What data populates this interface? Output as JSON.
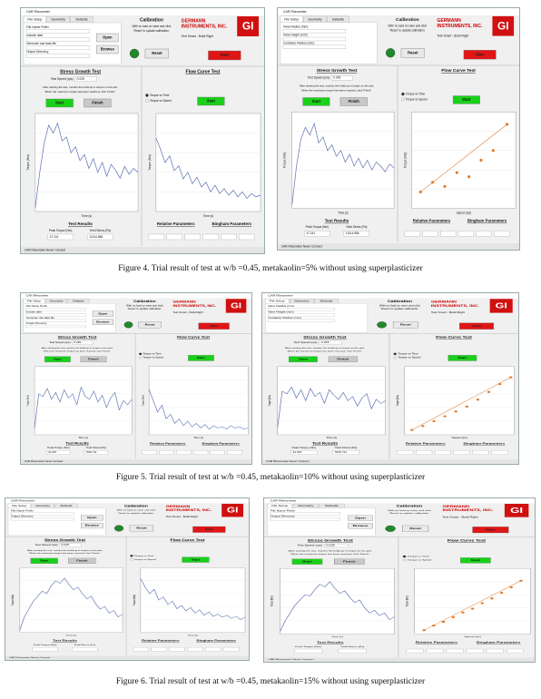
{
  "app": {
    "window_title": "CAR Rheometer",
    "tabs": [
      "File Setup",
      "Geometry",
      "Defaults"
    ],
    "calibration": "Calibration",
    "calibration_note": [
      "With no load on vane and click",
      "'Reset' to update calibration."
    ],
    "reset": "Reset",
    "brand": [
      "GERMANN",
      "INSTRUMENTS, INC."
    ],
    "tagline": "Test Smart - Build Right",
    "logo": "GI",
    "start": "Start",
    "finish": "Finish",
    "stress_title": "Stress Growth Test",
    "test_speed_label": "Test Speed (rps)",
    "test_speed": "0.025",
    "instructions": [
      "After starting the test, monitor the build-up in torque on the plot.",
      "When the maximum torque has been reached, click 'Finish'."
    ],
    "flow_title": "Flow Curve Test",
    "flow_options": [
      "Torque vs Time",
      "Torque vs Speed"
    ],
    "results_title": "Test Results",
    "results_labels": [
      "Peak Torque (Nm)",
      "Yield Stress (Pa)"
    ],
    "relative": "Relative Parameters",
    "bingham": "Bingham Parameters",
    "status": "CAR Rheometer Never Connect",
    "torque_axis": "Torque (Nm)",
    "time_axis": "Time (s)",
    "speed_axis": "Speed (rps)"
  },
  "figures": [
    {
      "caption": "Figure 4. Trial result of test at w/b =0.45, metakaolin=5% without using superplasticizer",
      "panels": [
        {
          "setup_fields": [
            "File Name Prefix",
            "Include date",
            "Generate raw data file",
            "Output Directory"
          ],
          "setup_buttons": [
            "Open",
            "Browse"
          ],
          "stress": {
            "ylim": [
              0,
              50
            ],
            "values": [
              2,
              20,
              35,
              44,
              40,
              45,
              36,
              38,
              30,
              33,
              26,
              29,
              22,
              27,
              20,
              25,
              18,
              24,
              21,
              17,
              23,
              19,
              22,
              20
            ]
          },
          "flow": {
            "ylim": [
              0,
              60
            ],
            "values": [
              45,
              38,
              30,
              34,
              25,
              28,
              20,
              24,
              17,
              21,
              15,
              18,
              12,
              16,
              11,
              14,
              10,
              13,
              9,
              12,
              8,
              11,
              9,
              10
            ]
          },
          "results_values": [
            "47.241",
            "11014.886"
          ]
        },
        {
          "setup_fields": [
            "Vane Radius (mm)",
            "Vane Height (mm)",
            "Container Radius (mm)"
          ],
          "stress": {
            "ylim": [
              0,
              50
            ],
            "values": [
              2,
              22,
              36,
              42,
              38,
              44,
              34,
              37,
              30,
              33,
              27,
              30,
              24,
              28,
              22,
              26,
              21,
              25,
              20,
              24,
              22,
              19,
              23,
              21
            ]
          },
          "flow": {
            "xlim": [
              0,
              0.6
            ],
            "ylim": [
              0,
              7
            ],
            "x": [
              0.05,
              0.12,
              0.19,
              0.26,
              0.33,
              0.4,
              0.47,
              0.55
            ],
            "values": [
              1.2,
              1.9,
              1.6,
              2.6,
              2.3,
              3.5,
              4.2,
              6.1
            ]
          },
          "results_values": [
            "47.241",
            "11014.886"
          ]
        }
      ]
    },
    {
      "caption": "Figure 5. Trial result of test at w/b =0.45, metakaolin=10% without using superplasticizer",
      "panels": [
        {
          "setup_fields": [
            "File Name Prefix",
            "Include date",
            "Generate raw data file",
            "Output Directory"
          ],
          "setup_buttons": [
            "Open",
            "Browse"
          ],
          "stress": {
            "ylim": [
              0,
              50
            ],
            "values": [
              5,
              30,
              28,
              34,
              26,
              31,
              24,
              33,
              27,
              30,
              22,
              35,
              28,
              26,
              32,
              24,
              29,
              20,
              27,
              31,
              18,
              25,
              22,
              26
            ]
          },
          "flow": {
            "ylim": [
              0,
              60
            ],
            "values": [
              40,
              30,
              20,
              26,
              14,
              18,
              10,
              14,
              8,
              12,
              7,
              10,
              6,
              9,
              5,
              8,
              6,
              7,
              5,
              8,
              6,
              7,
              5,
              6
            ]
          },
          "results_values": [
            "31.997",
            "7830.711"
          ]
        },
        {
          "setup_fields": [
            "Vane Radius (mm)",
            "Vane Height (mm)",
            "Container Radius (mm)"
          ],
          "stress": {
            "ylim": [
              0,
              50
            ],
            "values": [
              5,
              32,
              30,
              35,
              27,
              33,
              25,
              34,
              28,
              31,
              23,
              33,
              29,
              26,
              31,
              25,
              28,
              21,
              27,
              30,
              19,
              26,
              23,
              25
            ]
          },
          "flow": {
            "xlim": [
              0,
              0.6
            ],
            "ylim": [
              0,
              7
            ],
            "x": [
              0.04,
              0.1,
              0.16,
              0.22,
              0.28,
              0.34,
              0.4,
              0.46,
              0.52,
              0.58
            ],
            "values": [
              0.5,
              0.9,
              1.4,
              1.9,
              2.4,
              2.9,
              3.6,
              4.4,
              5.2,
              5.9
            ]
          },
          "results_values": [
            "31.997",
            "7830.711"
          ]
        }
      ]
    },
    {
      "caption": "Figure 6. Trial result of test at w/b =0.45, metakaolin=15% without using superplasticizer",
      "panels": [
        {
          "setup_fields": [
            "File Name Prefix",
            "Output Directory"
          ],
          "setup_buttons": [
            "Open",
            "Browse"
          ],
          "stress": {
            "ylim": [
              0,
              50
            ],
            "values": [
              2,
              12,
              18,
              24,
              28,
              32,
              30,
              36,
              40,
              38,
              42,
              37,
              33,
              35,
              30,
              26,
              28,
              22,
              18,
              20,
              15,
              17,
              12,
              14
            ]
          },
          "flow": {
            "ylim": [
              0,
              60
            ],
            "values": [
              50,
              42,
              36,
              40,
              30,
              33,
              26,
              29,
              22,
              25,
              20,
              23,
              18,
              21,
              16,
              19,
              15,
              17,
              14,
              16,
              13,
              15,
              12,
              14
            ]
          }
        },
        {
          "setup_fields": [
            "File Name Prefix",
            "Output Directory"
          ],
          "setup_buttons": [
            "Open",
            "Browse"
          ],
          "stress": {
            "ylim": [
              0,
              50
            ],
            "values": [
              2,
              10,
              16,
              22,
              26,
              30,
              29,
              34,
              38,
              36,
              40,
              35,
              31,
              33,
              28,
              24,
              26,
              20,
              16,
              18,
              14,
              16,
              11,
              13
            ]
          },
          "flow": {
            "xlim": [
              0,
              0.6
            ],
            "ylim": [
              0,
              7
            ],
            "x": [
              0.05,
              0.1,
              0.15,
              0.2,
              0.25,
              0.3,
              0.35,
              0.4,
              0.45,
              0.5,
              0.55
            ],
            "values": [
              0.4,
              0.9,
              1.3,
              1.8,
              2.3,
              2.7,
              3.3,
              3.8,
              4.4,
              5.0,
              5.7
            ]
          }
        }
      ]
    }
  ]
}
